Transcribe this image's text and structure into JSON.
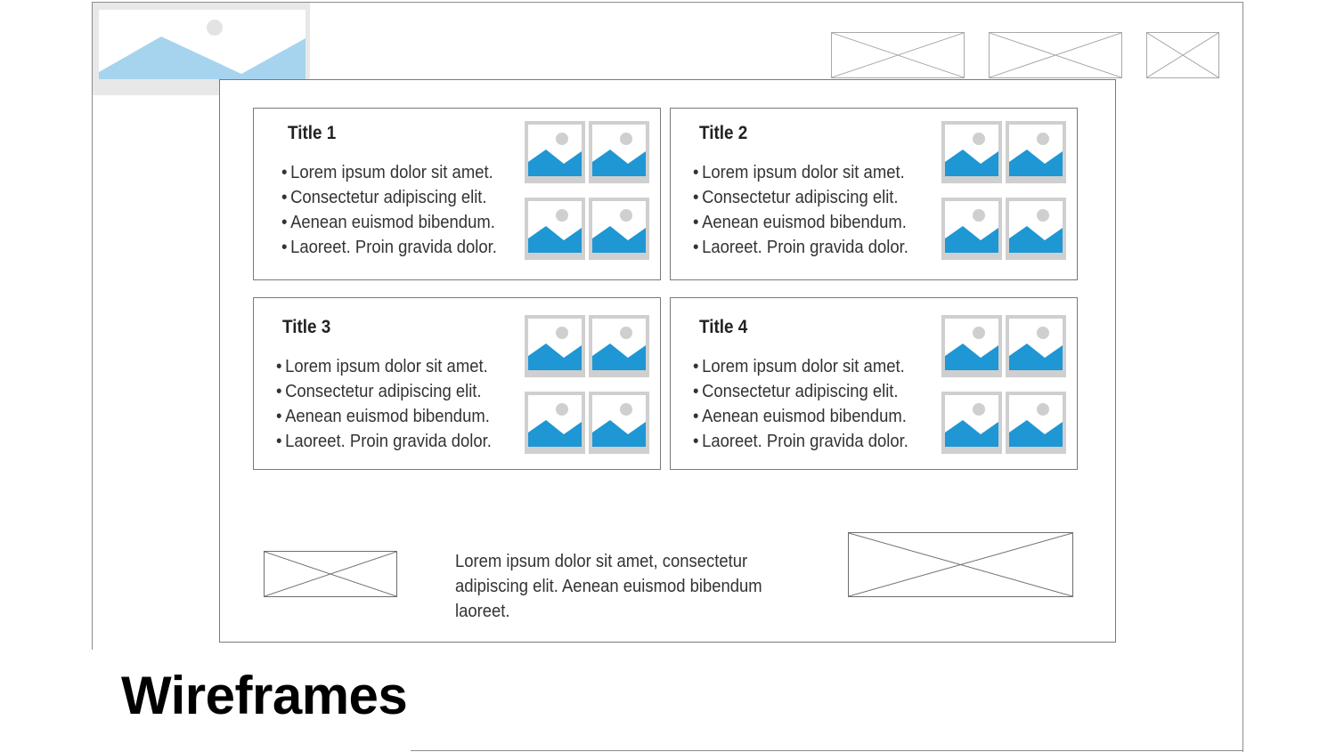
{
  "slide": {
    "title": "Wireframes"
  },
  "cards": [
    {
      "title": "Title 1",
      "items": [
        "Lorem ipsum dolor sit amet.",
        "Consectetur adipiscing elit.",
        "Aenean euismod bibendum.",
        "Laoreet. Proin gravida dolor."
      ]
    },
    {
      "title": "Title 2",
      "items": [
        "Lorem ipsum dolor sit amet.",
        "Consectetur adipiscing elit.",
        "Aenean euismod bibendum.",
        "Laoreet. Proin gravida dolor."
      ]
    },
    {
      "title": "Title 3",
      "items": [
        "Lorem ipsum dolor sit amet.",
        "Consectetur adipiscing elit.",
        "Aenean euismod bibendum.",
        "Laoreet. Proin gravida dolor."
      ]
    },
    {
      "title": "Title 4",
      "items": [
        "Lorem ipsum dolor sit amet.",
        "Consectetur adipiscing elit.",
        "Aenean euismod bibendum.",
        "Laoreet. Proin gravida dolor."
      ]
    }
  ],
  "footer": {
    "text": "Lorem ipsum dolor sit amet, consectetur adipiscing elit. Aenean euismod bibendum laoreet."
  },
  "icons": {
    "logo": "image-placeholder-icon",
    "thumbnail": "image-icon",
    "placeholder": "crossed-box-icon"
  },
  "colors": {
    "image_blue": "#1e97d4",
    "logo_blue": "#a6d4ef",
    "frame_gray": "#7a7a7a",
    "thumb_gray": "#cfcfcf"
  }
}
